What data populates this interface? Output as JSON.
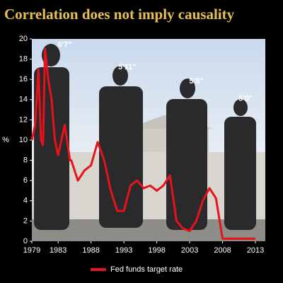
{
  "chart_data": {
    "type": "line",
    "title": "Correlation does not imply causality",
    "y_label": "%",
    "x": [
      1979,
      1979.5,
      1980,
      1980.4,
      1980.7,
      1981,
      1981.5,
      1982,
      1982.5,
      1983,
      1984,
      1984.8,
      1985,
      1986,
      1987,
      1988,
      1989,
      1990,
      1991,
      1992,
      1993,
      1994,
      1995,
      1996,
      1997,
      1998,
      1999,
      2000,
      2001,
      2002,
      2003,
      2004,
      2005,
      2006,
      2007,
      2008,
      2009,
      2010,
      2011,
      2012,
      2013
    ],
    "series": [
      {
        "name": "Fed funds target rate",
        "color": "#e8121b",
        "values": [
          10,
          11.5,
          17,
          10,
          9.5,
          19,
          16,
          14,
          10,
          8.5,
          11.5,
          8,
          8,
          6,
          7,
          7.5,
          9.8,
          8,
          5,
          3,
          3,
          5.5,
          6,
          5.25,
          5.5,
          5,
          5.5,
          6.5,
          2,
          1.25,
          1,
          2,
          4,
          5.25,
          4.25,
          0.25,
          0.25,
          0.25,
          0.25,
          0.25,
          0.25
        ]
      }
    ],
    "xlim": [
      1979,
      2014.5
    ],
    "xticks": [
      1979,
      1983,
      1988,
      1993,
      1998,
      2003,
      2008,
      2013
    ],
    "ylim": [
      0,
      20
    ],
    "yticks": [
      0,
      2,
      4,
      6,
      8,
      10,
      12,
      14,
      16,
      18,
      20
    ],
    "annotations": [
      {
        "text": "6'7\"",
        "x": 1984,
        "y": 19.4
      },
      {
        "text": "5'11\"",
        "x": 1993.5,
        "y": 17.2
      },
      {
        "text": "5'8\"",
        "x": 2004,
        "y": 15.8
      },
      {
        "text": "5'0\"",
        "x": 2011.5,
        "y": 14.1
      }
    ],
    "legend": "bottom"
  }
}
